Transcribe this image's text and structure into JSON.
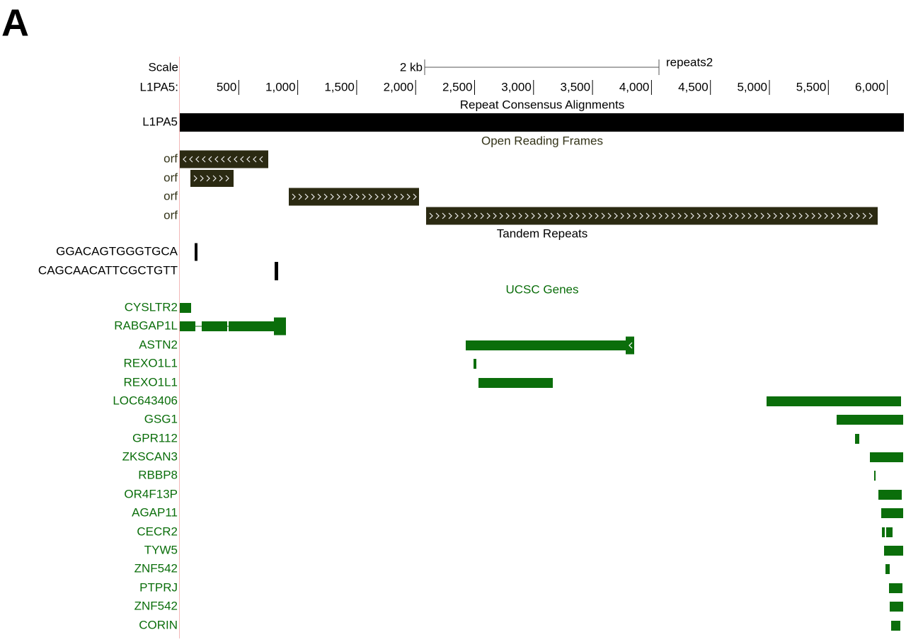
{
  "panel_label": "A",
  "scale": {
    "label": "Scale",
    "size": "2 kb",
    "name": "repeats2"
  },
  "ruler": {
    "label": "L1PA5:",
    "ticks": [
      "500",
      "1,000",
      "1,500",
      "2,000",
      "2,500",
      "3,000",
      "3,500",
      "4,000",
      "4,500",
      "5,000",
      "5,500",
      "6,000"
    ]
  },
  "tracks": [
    {
      "title": "Repeat Consensus Alignments",
      "rows": [
        {
          "label": "L1PA5"
        }
      ]
    },
    {
      "title": "Open Reading Frames",
      "rows": [
        {
          "label": "orf"
        },
        {
          "label": "orf"
        },
        {
          "label": "orf"
        },
        {
          "label": "orf"
        }
      ]
    },
    {
      "title": "Tandem Repeats",
      "rows": [
        {
          "label": "GGACAGTGGGTGCA"
        },
        {
          "label": "CAGCAACATTCGCTGTT"
        }
      ]
    },
    {
      "title": "UCSC Genes",
      "rows": [
        {
          "label": "CYSLTR2"
        },
        {
          "label": "RABGAP1L"
        },
        {
          "label": "ASTN2"
        },
        {
          "label": "REXO1L1"
        },
        {
          "label": "REXO1L1"
        },
        {
          "label": "LOC643406"
        },
        {
          "label": "GSG1"
        },
        {
          "label": "GPR112"
        },
        {
          "label": "ZKSCAN3"
        },
        {
          "label": "RBBP8"
        },
        {
          "label": "OR4F13P"
        },
        {
          "label": "AGAP11"
        },
        {
          "label": "CECR2"
        },
        {
          "label": "TYW5"
        },
        {
          "label": "ZNF542"
        },
        {
          "label": "PTPRJ"
        },
        {
          "label": "ZNF542"
        },
        {
          "label": "CORIN"
        }
      ]
    }
  ]
}
